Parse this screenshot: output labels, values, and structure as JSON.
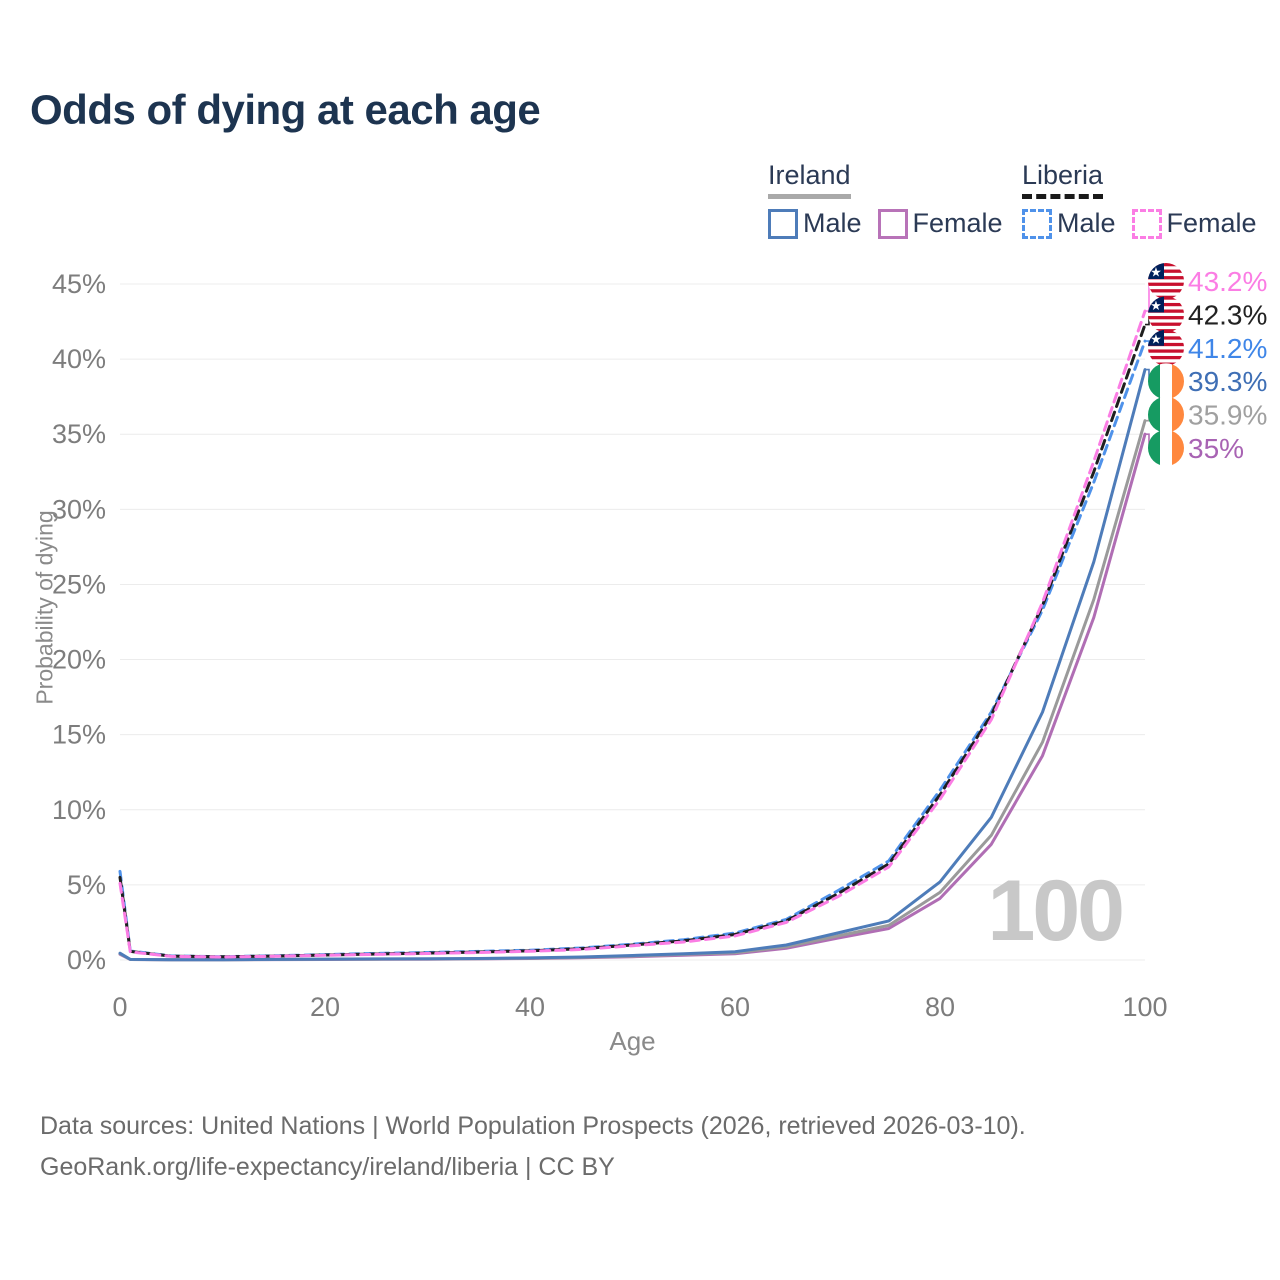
{
  "title": "Odds of dying at each age",
  "legend": {
    "groups": [
      {
        "label": "Ireland",
        "underline_style": "solid",
        "underline_color": "#a9a9a9",
        "items": [
          {
            "label": "Male",
            "color": "#4e7cb9",
            "line_style": "solid"
          },
          {
            "label": "Female",
            "color": "#b873b8",
            "line_style": "solid"
          }
        ]
      },
      {
        "label": "Liberia",
        "underline_style": "dashed",
        "underline_color": "#1a1a1a",
        "items": [
          {
            "label": "Male",
            "color": "#4f92ea",
            "line_style": "dashed"
          },
          {
            "label": "Female",
            "color": "#fb7de4",
            "line_style": "dashed"
          }
        ]
      }
    ]
  },
  "chart_data": {
    "type": "line",
    "title": "Odds of dying at each age",
    "xlabel": "Age",
    "ylabel": "Probability of dying",
    "xlim": [
      0,
      100
    ],
    "ylim": [
      0,
      45
    ],
    "x_ticks": [
      0,
      20,
      40,
      60,
      80,
      100
    ],
    "y_ticks": [
      "0%",
      "5%",
      "10%",
      "15%",
      "20%",
      "25%",
      "30%",
      "35%",
      "40%",
      "45%"
    ],
    "grid": "horizontal-only",
    "legend_position": "top-right",
    "ages": [
      0,
      1,
      5,
      10,
      15,
      20,
      25,
      30,
      35,
      40,
      45,
      50,
      55,
      60,
      65,
      70,
      75,
      80,
      85,
      90,
      95,
      100
    ],
    "series": [
      {
        "id": "ireland-female",
        "name": "Ireland Female",
        "country": "ireland",
        "sex": "female",
        "line_style": "solid",
        "color": "#b06eb4",
        "label_color": "#a863b3",
        "end_label": "35%",
        "values": [
          0.38,
          0.03,
          0.016,
          0.016,
          0.025,
          0.035,
          0.045,
          0.055,
          0.07,
          0.1,
          0.15,
          0.22,
          0.32,
          0.42,
          0.78,
          1.45,
          2.1,
          4.1,
          7.7,
          13.6,
          22.8,
          35.0
        ]
      },
      {
        "id": "ireland-both",
        "name": "Ireland Both sexes",
        "country": "ireland",
        "sex": "both",
        "line_style": "solid",
        "color": "#9a9a9a",
        "label_color": "#a0a0a0",
        "end_label": "35.9%",
        "values": [
          0.42,
          0.035,
          0.018,
          0.018,
          0.03,
          0.045,
          0.055,
          0.065,
          0.085,
          0.12,
          0.17,
          0.26,
          0.37,
          0.48,
          0.88,
          1.6,
          2.3,
          4.5,
          8.3,
          14.5,
          24.0,
          35.9
        ]
      },
      {
        "id": "ireland-male",
        "name": "Ireland Male",
        "country": "ireland",
        "sex": "male",
        "line_style": "solid",
        "color": "#4e7cb9",
        "label_color": "#3f6fb5",
        "end_label": "39.3%",
        "values": [
          0.45,
          0.04,
          0.02,
          0.02,
          0.04,
          0.06,
          0.07,
          0.08,
          0.1,
          0.14,
          0.2,
          0.3,
          0.42,
          0.55,
          1.0,
          1.8,
          2.6,
          5.2,
          9.5,
          16.5,
          26.5,
          39.3
        ]
      },
      {
        "id": "liberia-male",
        "name": "Liberia Male",
        "country": "liberia",
        "sex": "male",
        "line_style": "dashed",
        "color": "#4f92ea",
        "label_color": "#3f86e8",
        "end_label": "41.2%",
        "values": [
          5.9,
          0.6,
          0.27,
          0.22,
          0.28,
          0.36,
          0.44,
          0.5,
          0.57,
          0.65,
          0.8,
          1.05,
          1.35,
          1.8,
          2.7,
          4.6,
          6.6,
          11.3,
          16.5,
          23.3,
          31.8,
          41.2
        ]
      },
      {
        "id": "liberia-both",
        "name": "Liberia Both sexes",
        "country": "liberia",
        "sex": "both",
        "line_style": "dashed",
        "color": "#1f1f1f",
        "label_color": "#222222",
        "end_label": "42.3%",
        "values": [
          5.5,
          0.57,
          0.25,
          0.21,
          0.26,
          0.33,
          0.4,
          0.46,
          0.53,
          0.61,
          0.75,
          1.0,
          1.28,
          1.7,
          2.6,
          4.4,
          6.4,
          11.0,
          16.3,
          23.6,
          32.5,
          42.3
        ]
      },
      {
        "id": "liberia-female",
        "name": "Liberia Female",
        "country": "liberia",
        "sex": "female",
        "line_style": "dashed",
        "color": "#fb7de4",
        "label_color": "#fb7de4",
        "end_label": "43.2%",
        "values": [
          5.1,
          0.54,
          0.24,
          0.2,
          0.25,
          0.31,
          0.37,
          0.43,
          0.5,
          0.58,
          0.7,
          0.95,
          1.2,
          1.6,
          2.5,
          4.2,
          6.2,
          10.7,
          16.0,
          23.8,
          33.2,
          43.2
        ]
      }
    ],
    "flag_colors": {
      "liberia": {
        "red": "#C8102E",
        "white": "#ffffff",
        "blue": "#00205B"
      },
      "ireland": {
        "green": "#169B62",
        "white": "#ffffff",
        "orange": "#FF883E"
      }
    }
  },
  "annotations": {
    "age_counter": "100"
  },
  "footer": {
    "line1": "Data sources: United Nations | World Population Prospects (2026, retrieved 2026-03-10).",
    "line2": "GeoRank.org/life-expectancy/ireland/liberia | CC BY"
  }
}
